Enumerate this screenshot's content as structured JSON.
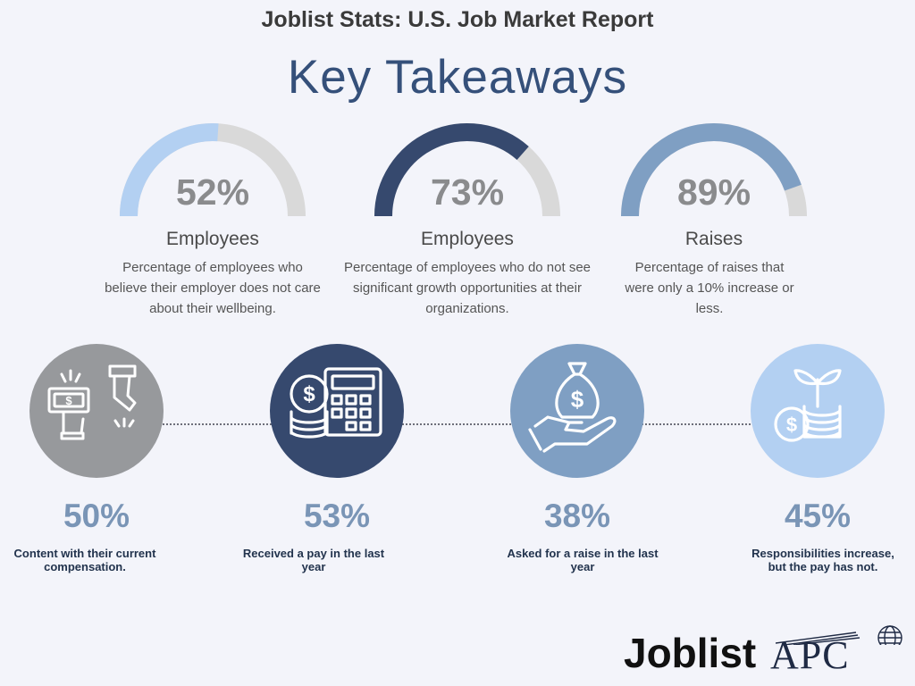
{
  "report_title": "Joblist Stats: U.S. Job Market Report",
  "main_title": "Key Takeaways",
  "gauges": [
    {
      "percent_text": "52%",
      "value": 0.52,
      "label": "Employees",
      "description": "Percentage of employees who believe their employer does not care about their wellbeing.",
      "fill_color": "#b3d0f2",
      "track_color": "#d9d9d9"
    },
    {
      "percent_text": "73%",
      "value": 0.73,
      "label": "Employees",
      "description": "Percentage of employees who do not see significant growth opportunities at their organizations.",
      "fill_color": "#36496e",
      "track_color": "#d9d9d9"
    },
    {
      "percent_text": "89%",
      "value": 0.89,
      "label": "Raises",
      "description": "Percentage of raises that were only a 10% increase or less.",
      "fill_color": "#7f9fc3",
      "track_color": "#d9d9d9"
    }
  ],
  "stats": [
    {
      "percent_text": "50%",
      "description": "Content with their current compensation.",
      "icon": "money-exchange-icon",
      "circle_color": "#97999c"
    },
    {
      "percent_text": "53%",
      "description": "Received a pay in the last year",
      "icon": "calculator-coins-icon",
      "circle_color": "#36496e"
    },
    {
      "percent_text": "38%",
      "description": "Asked for a raise in the last year",
      "icon": "money-bag-hand-icon",
      "circle_color": "#7f9fc3"
    },
    {
      "percent_text": "45%",
      "description": "Responsibilities increase, but the pay has not.",
      "icon": "plant-coins-icon",
      "circle_color": "#b3d0f2"
    }
  ],
  "logo": {
    "brand": "Joblist",
    "partner": "APC"
  }
}
